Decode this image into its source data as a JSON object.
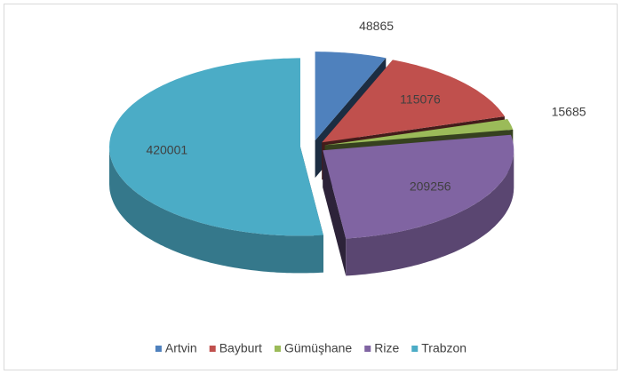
{
  "chart_data": {
    "type": "pie3d",
    "categories": [
      "Artvin",
      "Bayburt",
      "Gümüşhane",
      "Rize",
      "Trabzon"
    ],
    "values": [
      48865,
      115076,
      15685,
      209256,
      420001
    ],
    "colors": [
      "#4f81bd",
      "#c0504d",
      "#9bbb59",
      "#8064a2",
      "#4bacc6"
    ],
    "legend": "bottom"
  }
}
